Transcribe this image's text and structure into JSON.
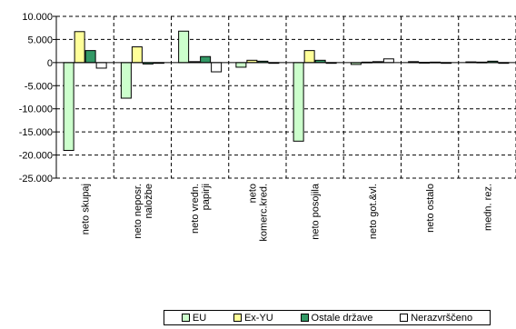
{
  "chart_data": {
    "type": "bar",
    "categories": [
      [
        "neto skupaj"
      ],
      [
        "neto neposr.",
        "naložbe"
      ],
      [
        "neto vredn.",
        "papirji"
      ],
      [
        "neto",
        "komerc.kred."
      ],
      [
        "neto posojila"
      ],
      [
        "neto got.&vl."
      ],
      [
        "neto ostalo"
      ],
      [
        "medn. rez."
      ]
    ],
    "series": [
      {
        "name": "EU",
        "color": "#ccffcc",
        "values": [
          -19000,
          -7700,
          6800,
          -1000,
          -17000,
          -400,
          200,
          150
        ]
      },
      {
        "name": "Ex-YU",
        "color": "#ffff99",
        "values": [
          6700,
          3400,
          200,
          500,
          2600,
          100,
          50,
          100
        ]
      },
      {
        "name": "Ostale države",
        "color": "#339966",
        "values": [
          2600,
          -300,
          1300,
          300,
          500,
          200,
          100,
          300
        ]
      },
      {
        "name": "Nerazvrščeno",
        "color": "#ffffff",
        "values": [
          -1200,
          0,
          -2000,
          0,
          0,
          800,
          0,
          0
        ]
      }
    ],
    "ylim": [
      -25000,
      10000
    ],
    "yticks": [
      "-25.000",
      "-20.000",
      "-15.000",
      "-10.000",
      "-5.000",
      "0",
      "5.000",
      "10.000"
    ],
    "grid": true,
    "legend_position": "bottom-right"
  }
}
